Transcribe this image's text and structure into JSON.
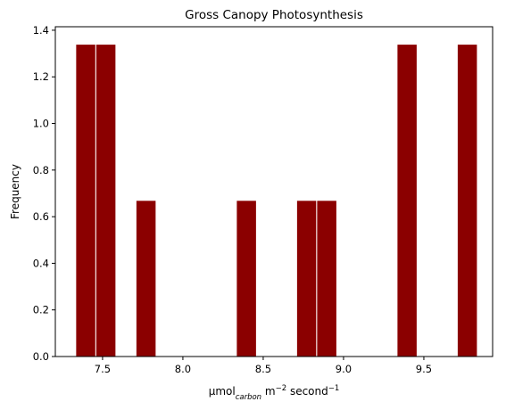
{
  "chart_data": {
    "type": "histogram",
    "title": "Gross Canopy Photosynthesis",
    "ylabel": "Frequency",
    "xlabel_parts": [
      "μmol",
      "carbon",
      " m",
      "−2",
      " second",
      "−1"
    ],
    "bins": [
      7.333,
      7.458,
      7.583,
      7.708,
      7.833,
      7.958,
      8.083,
      8.208,
      8.333,
      8.458,
      8.583,
      8.708,
      8.833,
      8.958,
      9.083,
      9.208,
      9.333,
      9.458,
      9.583,
      9.708,
      9.833
    ],
    "values": [
      1.34,
      1.34,
      0,
      0.67,
      0,
      0,
      0,
      0,
      0.67,
      0,
      0,
      0.67,
      0.67,
      0,
      0,
      0,
      1.34,
      0,
      0,
      1.34
    ],
    "color": "#8b0000",
    "edgecolor": "#ffffff",
    "xlim": [
      7.206,
      9.928
    ],
    "ylim": [
      0,
      1.415
    ],
    "xticks": [
      7.5,
      {
        "value": 8.0,
        "label": "8.0"
      },
      8.5,
      {
        "value": 9.0,
        "label": "9.0"
      },
      9.5
    ],
    "yticks": [
      {
        "value": 0,
        "label": "0.0"
      },
      0.2,
      0.4,
      0.6,
      0.8,
      {
        "value": 1.0,
        "label": "1.0"
      },
      1.2,
      1.4
    ]
  }
}
